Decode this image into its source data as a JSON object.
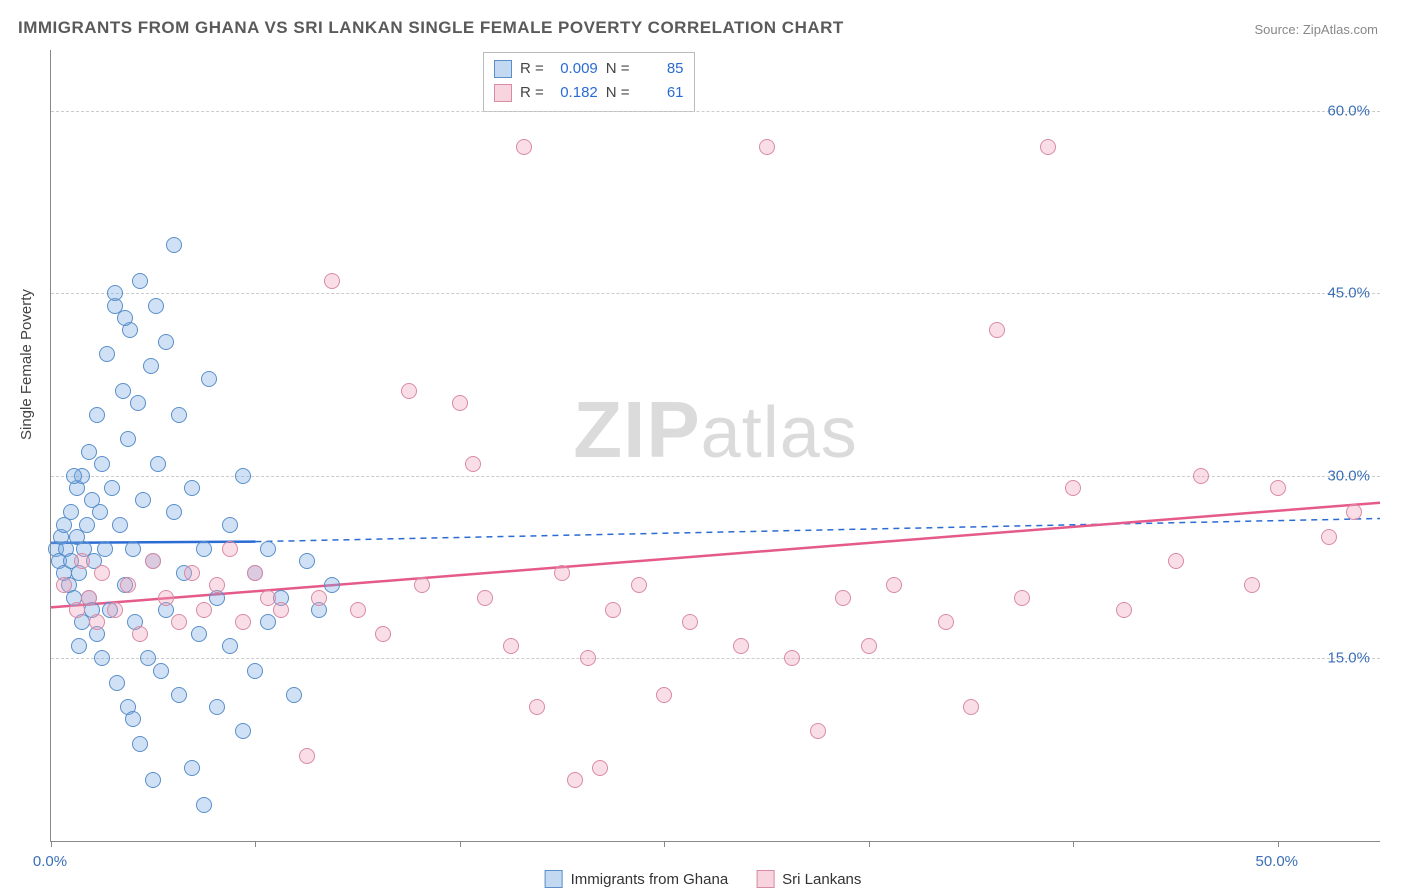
{
  "title": "IMMIGRANTS FROM GHANA VS SRI LANKAN SINGLE FEMALE POVERTY CORRELATION CHART",
  "source_label": "Source: ZipAtlas.com",
  "ylabel": "Single Female Poverty",
  "watermark_a": "ZIP",
  "watermark_b": "atlas",
  "chart": {
    "type": "scatter",
    "background_color": "#ffffff",
    "grid_color": "#cccccc",
    "axis_color": "#888888",
    "tick_label_color": "#3b6fb6",
    "tick_fontsize": 15,
    "title_fontsize": 17,
    "title_color": "#5a5a5a",
    "xlim": [
      0,
      52
    ],
    "ylim": [
      0,
      65
    ],
    "xtick_positions": [
      0,
      8,
      16,
      24,
      32,
      40,
      48
    ],
    "xtick_labels": {
      "0": "0.0%",
      "48": "50.0%"
    },
    "ytick_positions": [
      15,
      30,
      45,
      60
    ],
    "ytick_labels": [
      "15.0%",
      "30.0%",
      "45.0%",
      "60.0%"
    ],
    "marker_radius": 8,
    "marker_opacity": 0.35,
    "series": [
      {
        "name": "Immigrants from Ghana",
        "color_fill": "#78aae1",
        "color_stroke": "#5a8fc9",
        "legend_label": "Immigrants from Ghana",
        "R": "0.009",
        "N": "85",
        "trend": {
          "x1": 0,
          "y1": 24.5,
          "x2_solid": 8,
          "y2_solid": 24.6,
          "x2": 52,
          "y2": 26.5,
          "width": 2.5,
          "color": "#2a6bd4"
        },
        "points": [
          [
            0.2,
            24
          ],
          [
            0.3,
            23
          ],
          [
            0.4,
            25
          ],
          [
            0.5,
            22
          ],
          [
            0.5,
            26
          ],
          [
            0.6,
            24
          ],
          [
            0.7,
            21
          ],
          [
            0.8,
            23
          ],
          [
            0.8,
            27
          ],
          [
            0.9,
            20
          ],
          [
            1.0,
            25
          ],
          [
            1.0,
            29
          ],
          [
            1.1,
            22
          ],
          [
            1.2,
            18
          ],
          [
            1.2,
            30
          ],
          [
            1.3,
            24
          ],
          [
            1.4,
            26
          ],
          [
            1.5,
            32
          ],
          [
            1.5,
            20
          ],
          [
            1.6,
            28
          ],
          [
            1.7,
            23
          ],
          [
            1.8,
            35
          ],
          [
            1.8,
            17
          ],
          [
            1.9,
            27
          ],
          [
            2.0,
            31
          ],
          [
            2.0,
            15
          ],
          [
            2.1,
            24
          ],
          [
            2.2,
            40
          ],
          [
            2.3,
            19
          ],
          [
            2.4,
            29
          ],
          [
            2.5,
            44
          ],
          [
            2.5,
            45
          ],
          [
            2.6,
            13
          ],
          [
            2.7,
            26
          ],
          [
            2.8,
            37
          ],
          [
            2.9,
            21
          ],
          [
            3.0,
            33
          ],
          [
            3.0,
            11
          ],
          [
            3.1,
            42
          ],
          [
            3.2,
            24
          ],
          [
            3.3,
            18
          ],
          [
            3.4,
            36
          ],
          [
            3.5,
            46
          ],
          [
            3.5,
            8
          ],
          [
            3.6,
            28
          ],
          [
            3.8,
            15
          ],
          [
            3.9,
            39
          ],
          [
            4.0,
            23
          ],
          [
            4.0,
            5
          ],
          [
            4.2,
            31
          ],
          [
            4.3,
            14
          ],
          [
            4.5,
            41
          ],
          [
            4.5,
            19
          ],
          [
            4.8,
            27
          ],
          [
            4.8,
            49
          ],
          [
            5.0,
            12
          ],
          [
            5.0,
            35
          ],
          [
            5.2,
            22
          ],
          [
            5.5,
            29
          ],
          [
            5.5,
            6
          ],
          [
            5.8,
            17
          ],
          [
            6.0,
            24
          ],
          [
            6.0,
            3
          ],
          [
            6.2,
            38
          ],
          [
            6.5,
            20
          ],
          [
            6.5,
            11
          ],
          [
            7.0,
            26
          ],
          [
            7.0,
            16
          ],
          [
            7.5,
            30
          ],
          [
            7.5,
            9
          ],
          [
            8.0,
            22
          ],
          [
            8.0,
            14
          ],
          [
            8.5,
            18
          ],
          [
            8.5,
            24
          ],
          [
            9.0,
            20
          ],
          [
            9.5,
            12
          ],
          [
            10.0,
            23
          ],
          [
            10.5,
            19
          ],
          [
            11.0,
            21
          ],
          [
            4.1,
            44
          ],
          [
            2.9,
            43
          ],
          [
            1.6,
            19
          ],
          [
            0.9,
            30
          ],
          [
            1.1,
            16
          ],
          [
            3.2,
            10
          ]
        ]
      },
      {
        "name": "Sri Lankans",
        "color_fill": "#f0a0b9",
        "color_stroke": "#d98aa5",
        "legend_label": "Sri Lankans",
        "R": "0.182",
        "N": "61",
        "trend": {
          "x1": 0,
          "y1": 19.2,
          "x2_solid": 52,
          "y2_solid": 27.8,
          "x2": 52,
          "y2": 27.8,
          "width": 2.5,
          "color": "#e55a8a"
        },
        "points": [
          [
            0.5,
            21
          ],
          [
            1.0,
            19
          ],
          [
            1.2,
            23
          ],
          [
            1.5,
            20
          ],
          [
            1.8,
            18
          ],
          [
            2.0,
            22
          ],
          [
            2.5,
            19
          ],
          [
            3.0,
            21
          ],
          [
            3.5,
            17
          ],
          [
            4.0,
            23
          ],
          [
            4.5,
            20
          ],
          [
            5.0,
            18
          ],
          [
            5.5,
            22
          ],
          [
            6.0,
            19
          ],
          [
            6.5,
            21
          ],
          [
            7.0,
            24
          ],
          [
            7.5,
            18
          ],
          [
            8.0,
            22
          ],
          [
            8.5,
            20
          ],
          [
            9.0,
            19
          ],
          [
            10.0,
            7
          ],
          [
            10.5,
            20
          ],
          [
            11.0,
            46
          ],
          [
            12.0,
            19
          ],
          [
            13.0,
            17
          ],
          [
            14.0,
            37
          ],
          [
            14.5,
            21
          ],
          [
            16.0,
            36
          ],
          [
            16.5,
            31
          ],
          [
            17.0,
            20
          ],
          [
            18.0,
            16
          ],
          [
            18.5,
            57
          ],
          [
            19.0,
            11
          ],
          [
            20.0,
            22
          ],
          [
            20.5,
            5
          ],
          [
            21.0,
            15
          ],
          [
            21.5,
            6
          ],
          [
            22.0,
            19
          ],
          [
            23.0,
            21
          ],
          [
            24.0,
            12
          ],
          [
            25.0,
            18
          ],
          [
            27.0,
            16
          ],
          [
            28.0,
            57
          ],
          [
            29.0,
            15
          ],
          [
            30.0,
            9
          ],
          [
            31.0,
            20
          ],
          [
            32.0,
            16
          ],
          [
            33.0,
            21
          ],
          [
            35.0,
            18
          ],
          [
            36.0,
            11
          ],
          [
            37.0,
            42
          ],
          [
            38.0,
            20
          ],
          [
            39.0,
            57
          ],
          [
            40.0,
            29
          ],
          [
            42.0,
            19
          ],
          [
            44.0,
            23
          ],
          [
            45.0,
            30
          ],
          [
            47.0,
            21
          ],
          [
            48.0,
            29
          ],
          [
            50.0,
            25
          ],
          [
            51.0,
            27
          ]
        ]
      }
    ]
  },
  "legend_stats": {
    "r_label": "R =",
    "n_label": "N ="
  }
}
